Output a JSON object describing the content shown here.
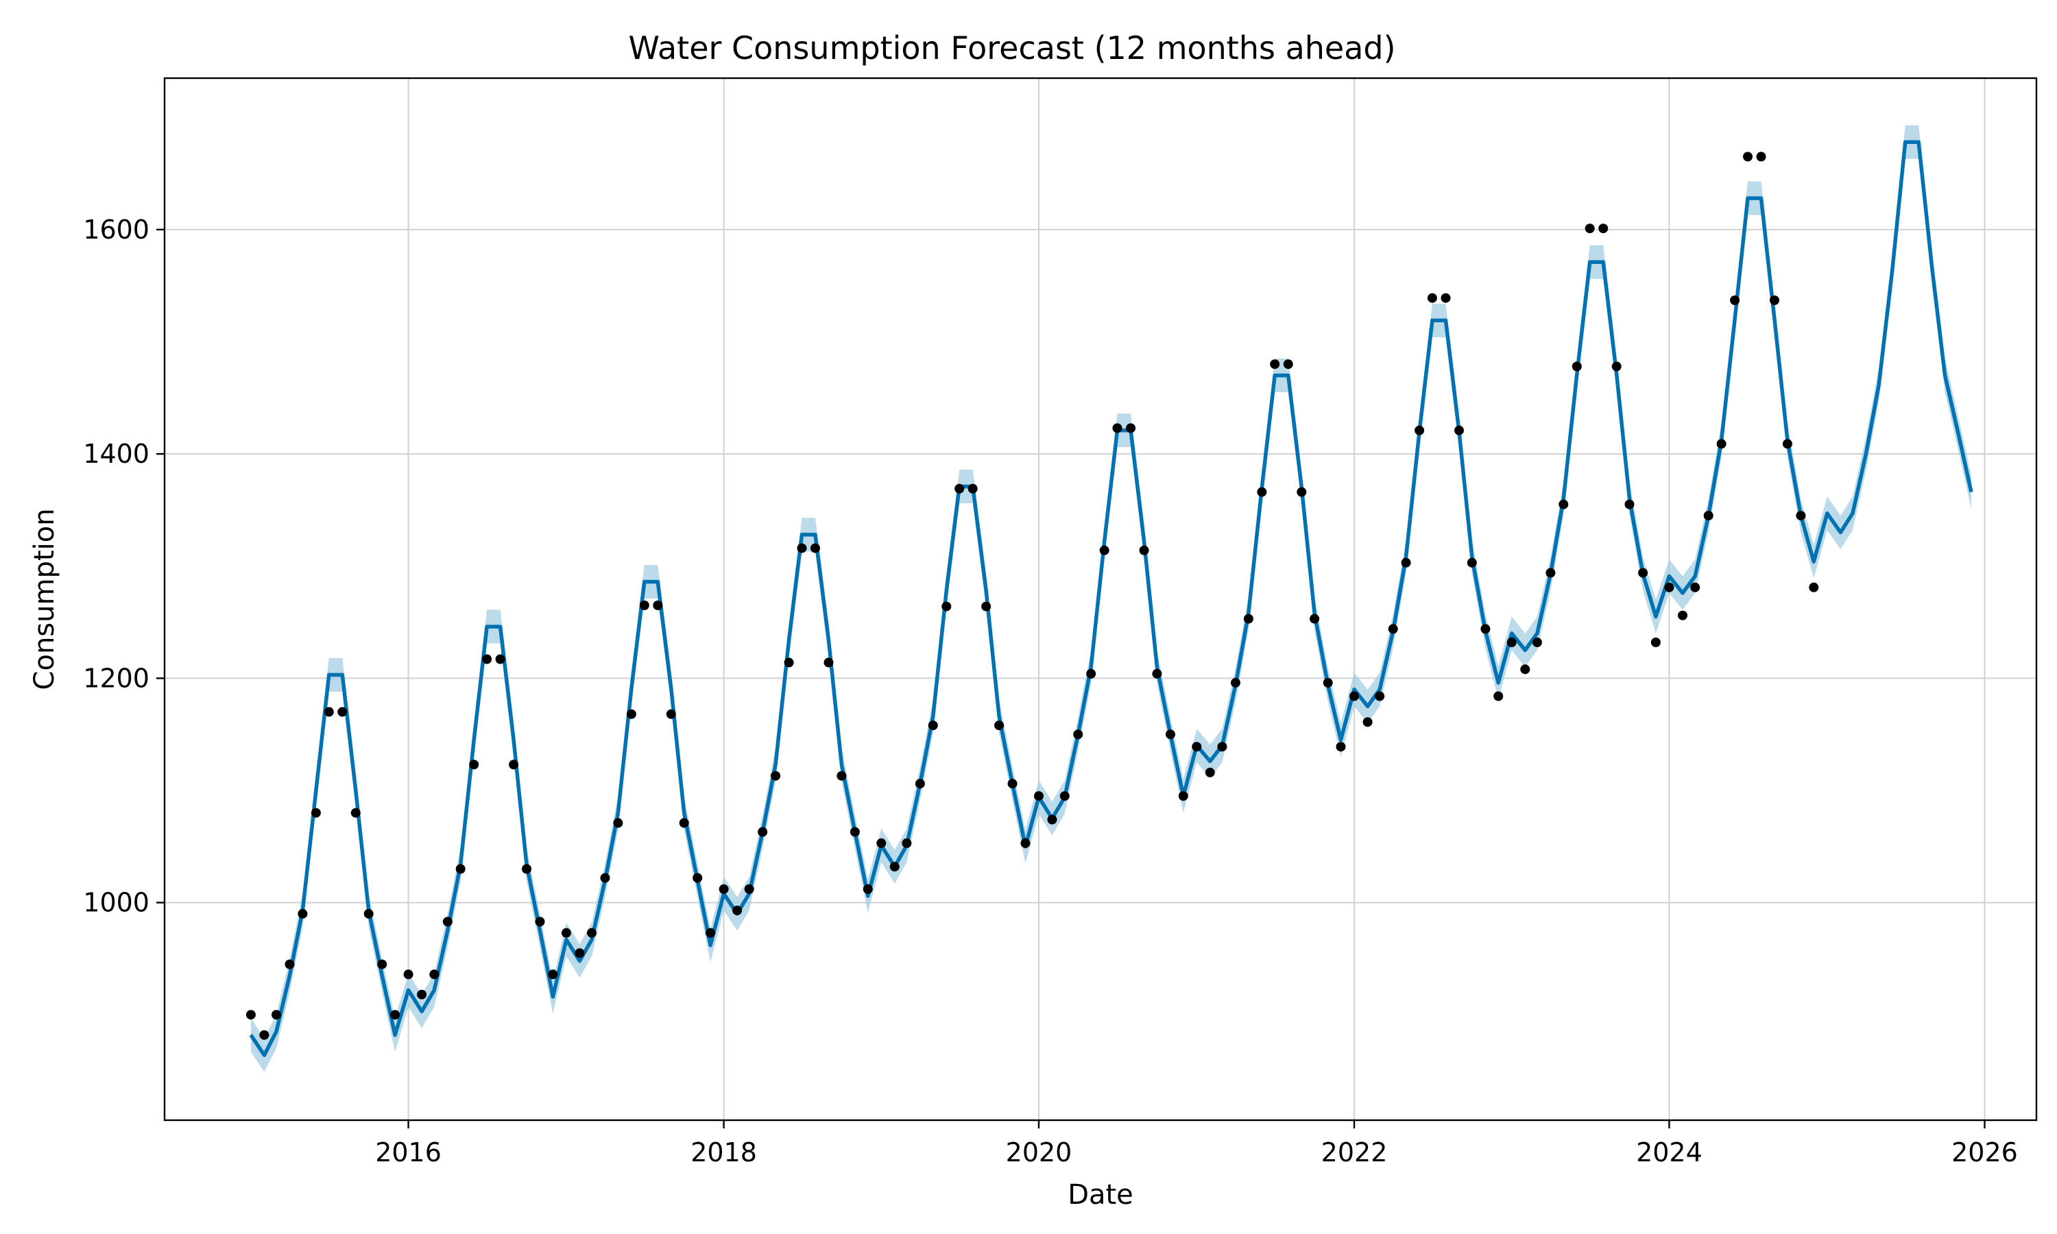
{
  "chart_data": {
    "type": "line",
    "title": "Water Consumption Forecast (12 months ahead)",
    "xlabel": "Date",
    "ylabel": "Consumption",
    "xlim": [
      "2014-06-15",
      "2026-05-01"
    ],
    "ylim": [
      806,
      1735
    ],
    "x_ticks": [
      "2016",
      "2018",
      "2020",
      "2022",
      "2024",
      "2026"
    ],
    "y_ticks": [
      1000,
      1200,
      1400,
      1600
    ],
    "grid": true,
    "legend": "none",
    "colors": {
      "forecast": "#0072b2",
      "interval": "#9ecae1",
      "observed": "#000000",
      "grid": "#d0d0d0"
    },
    "series": [
      {
        "role": "observed",
        "style": "black dots",
        "x": [
          "2015-01",
          "2015-02",
          "2015-03",
          "2015-04",
          "2015-05",
          "2015-06",
          "2015-07",
          "2015-08",
          "2015-09",
          "2015-10",
          "2015-11",
          "2015-12",
          "2016-01",
          "2016-02",
          "2016-03",
          "2016-04",
          "2016-05",
          "2016-06",
          "2016-07",
          "2016-08",
          "2016-09",
          "2016-10",
          "2016-11",
          "2016-12",
          "2017-01",
          "2017-02",
          "2017-03",
          "2017-04",
          "2017-05",
          "2017-06",
          "2017-07",
          "2017-08",
          "2017-09",
          "2017-10",
          "2017-11",
          "2017-12",
          "2018-01",
          "2018-02",
          "2018-03",
          "2018-04",
          "2018-05",
          "2018-06",
          "2018-07",
          "2018-08",
          "2018-09",
          "2018-10",
          "2018-11",
          "2018-12",
          "2019-01",
          "2019-02",
          "2019-03",
          "2019-04",
          "2019-05",
          "2019-06",
          "2019-07",
          "2019-08",
          "2019-09",
          "2019-10",
          "2019-11",
          "2019-12",
          "2020-01",
          "2020-02",
          "2020-03",
          "2020-04",
          "2020-05",
          "2020-06",
          "2020-07",
          "2020-08",
          "2020-09",
          "2020-10",
          "2020-11",
          "2020-12",
          "2021-01",
          "2021-02",
          "2021-03",
          "2021-04",
          "2021-05",
          "2021-06",
          "2021-07",
          "2021-08",
          "2021-09",
          "2021-10",
          "2021-11",
          "2021-12",
          "2022-01",
          "2022-02",
          "2022-03",
          "2022-04",
          "2022-05",
          "2022-06",
          "2022-07",
          "2022-08",
          "2022-09",
          "2022-10",
          "2022-11",
          "2022-12",
          "2023-01",
          "2023-02",
          "2023-03",
          "2023-04",
          "2023-05",
          "2023-06",
          "2023-07",
          "2023-08",
          "2023-09",
          "2023-10",
          "2023-11",
          "2023-12",
          "2024-01",
          "2024-02",
          "2024-03",
          "2024-04",
          "2024-05",
          "2024-06",
          "2024-07",
          "2024-08",
          "2024-09",
          "2024-10",
          "2024-11",
          "2024-12"
        ],
        "values": [
          900,
          882,
          900,
          945,
          990,
          1080,
          1170,
          1170,
          1080,
          990,
          945,
          900,
          936,
          918,
          936,
          983,
          1030,
          1123,
          1217,
          1217,
          1123,
          1030,
          983,
          936,
          973,
          955,
          973,
          1022,
          1071,
          1168,
          1265,
          1265,
          1168,
          1071,
          1022,
          973,
          1012,
          993,
          1012,
          1063,
          1113,
          1214,
          1316,
          1316,
          1214,
          1113,
          1063,
          1012,
          1053,
          1032,
          1053,
          1106,
          1158,
          1264,
          1369,
          1369,
          1264,
          1158,
          1106,
          1053,
          1095,
          1074,
          1095,
          1150,
          1204,
          1314,
          1423,
          1423,
          1314,
          1204,
          1150,
          1095,
          1139,
          1116,
          1139,
          1196,
          1253,
          1366,
          1480,
          1480,
          1366,
          1253,
          1196,
          1139,
          1184,
          1161,
          1184,
          1244,
          1303,
          1421,
          1539,
          1539,
          1421,
          1303,
          1244,
          1184,
          1232,
          1208,
          1232,
          1294,
          1355,
          1478,
          1601,
          1601,
          1478,
          1355,
          1294,
          1232,
          1281,
          1256,
          1281,
          1345,
          1409,
          1537,
          1665,
          1665,
          1537,
          1409,
          1345,
          1281
        ]
      },
      {
        "role": "forecast",
        "style": "blue line with shaded uncertainty interval",
        "x": [
          "2015-01",
          "2015-02",
          "2015-03",
          "2015-04",
          "2015-05",
          "2015-06",
          "2015-07",
          "2015-08",
          "2015-09",
          "2015-10",
          "2015-11",
          "2015-12",
          "2016-01",
          "2016-02",
          "2016-03",
          "2016-04",
          "2016-05",
          "2016-06",
          "2016-07",
          "2016-08",
          "2016-09",
          "2016-10",
          "2016-11",
          "2016-12",
          "2017-01",
          "2017-02",
          "2017-03",
          "2017-04",
          "2017-05",
          "2017-06",
          "2017-07",
          "2017-08",
          "2017-09",
          "2017-10",
          "2017-11",
          "2017-12",
          "2018-01",
          "2018-02",
          "2018-03",
          "2018-04",
          "2018-05",
          "2018-06",
          "2018-07",
          "2018-08",
          "2018-09",
          "2018-10",
          "2018-11",
          "2018-12",
          "2019-01",
          "2019-02",
          "2019-03",
          "2019-04",
          "2019-05",
          "2019-06",
          "2019-07",
          "2019-08",
          "2019-09",
          "2019-10",
          "2019-11",
          "2019-12",
          "2020-01",
          "2020-02",
          "2020-03",
          "2020-04",
          "2020-05",
          "2020-06",
          "2020-07",
          "2020-08",
          "2020-09",
          "2020-10",
          "2020-11",
          "2020-12",
          "2021-01",
          "2021-02",
          "2021-03",
          "2021-04",
          "2021-05",
          "2021-06",
          "2021-07",
          "2021-08",
          "2021-09",
          "2021-10",
          "2021-11",
          "2021-12",
          "2022-01",
          "2022-02",
          "2022-03",
          "2022-04",
          "2022-05",
          "2022-06",
          "2022-07",
          "2022-08",
          "2022-09",
          "2022-10",
          "2022-11",
          "2022-12",
          "2023-01",
          "2023-02",
          "2023-03",
          "2023-04",
          "2023-05",
          "2023-06",
          "2023-07",
          "2023-08",
          "2023-09",
          "2023-10",
          "2023-11",
          "2023-12",
          "2024-01",
          "2024-02",
          "2024-03",
          "2024-04",
          "2024-05",
          "2024-06",
          "2024-07",
          "2024-08",
          "2024-09",
          "2024-10",
          "2024-11",
          "2024-12",
          "2025-01",
          "2025-02",
          "2025-03",
          "2025-04",
          "2025-05",
          "2025-06",
          "2025-07",
          "2025-08",
          "2025-09",
          "2025-10",
          "2025-11",
          "2025-12"
        ],
        "values": [
          882,
          864,
          885,
          935,
          993,
          1100,
          1203,
          1203,
          1100,
          993,
          935,
          882,
          922,
          903,
          922,
          975,
          1034,
          1145,
          1246,
          1246,
          1145,
          1034,
          975,
          916,
          967,
          948,
          967,
          1020,
          1080,
          1191,
          1286,
          1286,
          1191,
          1080,
          1020,
          962,
          1008,
          990,
          1008,
          1063,
          1123,
          1234,
          1328,
          1328,
          1234,
          1123,
          1063,
          1006,
          1051,
          1032,
          1051,
          1106,
          1166,
          1278,
          1371,
          1371,
          1278,
          1166,
          1106,
          1050,
          1094,
          1075,
          1094,
          1150,
          1210,
          1322,
          1421,
          1421,
          1322,
          1210,
          1150,
          1095,
          1140,
          1126,
          1140,
          1194,
          1258,
          1370,
          1470,
          1470,
          1370,
          1258,
          1194,
          1145,
          1190,
          1175,
          1190,
          1242,
          1308,
          1420,
          1519,
          1519,
          1420,
          1308,
          1242,
          1196,
          1240,
          1225,
          1240,
          1293,
          1360,
          1471,
          1571,
          1571,
          1471,
          1360,
          1293,
          1255,
          1291,
          1276,
          1291,
          1345,
          1412,
          1520,
          1628,
          1628,
          1520,
          1412,
          1345,
          1304,
          1347,
          1330,
          1347,
          1400,
          1462,
          1564,
          1678,
          1678,
          1566,
          1470,
          1418,
          1366
        ],
        "interval_halfwidth": 15
      }
    ]
  }
}
